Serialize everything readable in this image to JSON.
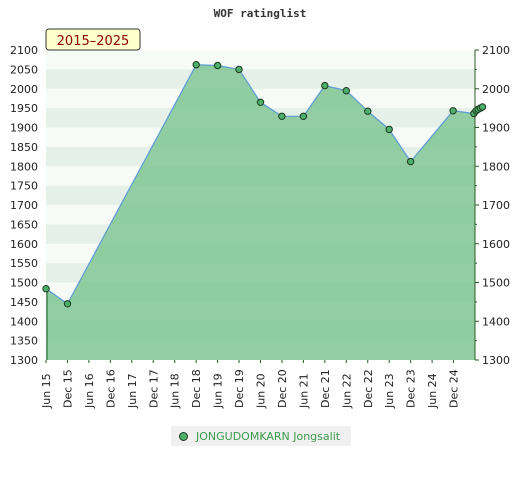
{
  "chart_data": {
    "type": "area",
    "title": "WOF ratinglist",
    "badge": "2015–2025",
    "ylim": [
      1300,
      2100
    ],
    "y_ticks": [
      1300,
      1350,
      1400,
      1450,
      1500,
      1550,
      1600,
      1650,
      1700,
      1750,
      1800,
      1850,
      1900,
      1950,
      2000,
      2050,
      2100
    ],
    "y_ticks_right": [
      1300,
      1400,
      1500,
      1600,
      1700,
      1800,
      1900,
      2000,
      2100
    ],
    "x_ticks": [
      "Jun 15",
      "Dec 15",
      "Jun 16",
      "Dec 16",
      "Jun 17",
      "Dec 17",
      "Jun 18",
      "Dec 18",
      "Jun 19",
      "Dec 19",
      "Jun 20",
      "Dec 20",
      "Jun 21",
      "Dec 21",
      "Jun 22",
      "Dec 22",
      "Jun 23",
      "Dec 23",
      "Jun 24",
      "Dec 24"
    ],
    "series": [
      {
        "name": "JONGUDOMKARN Jongsalit",
        "color": "#4caf6a",
        "line_color": "#5b9bd5",
        "x": [
          0,
          1,
          7,
          8,
          9,
          10,
          11,
          12,
          13,
          14,
          15,
          16,
          17,
          18.98,
          19.95,
          20.05,
          20.15,
          20.25,
          20.35
        ],
        "values": [
          1484,
          1445,
          2062,
          2060,
          2050,
          1965,
          1929,
          1929,
          2008,
          1995,
          1942,
          1895,
          1812,
          1943,
          1936,
          1943,
          1947,
          1950,
          1953
        ]
      }
    ],
    "x_point_labels": [
      "Jun 15",
      "Dec 15",
      "Jun 18",
      "Dec 18",
      "Jun 19",
      "Dec 19",
      "Jun 20",
      "Dec 20",
      "Jun 21",
      "Dec 21",
      "Jun 22",
      "Dec 22",
      "Jun 24",
      "Dec 24",
      "Dec 24",
      "Dec 24",
      "Dec 24",
      "Dec 24",
      "Dec 24"
    ],
    "legend": {
      "placement": "bottom-center"
    }
  }
}
